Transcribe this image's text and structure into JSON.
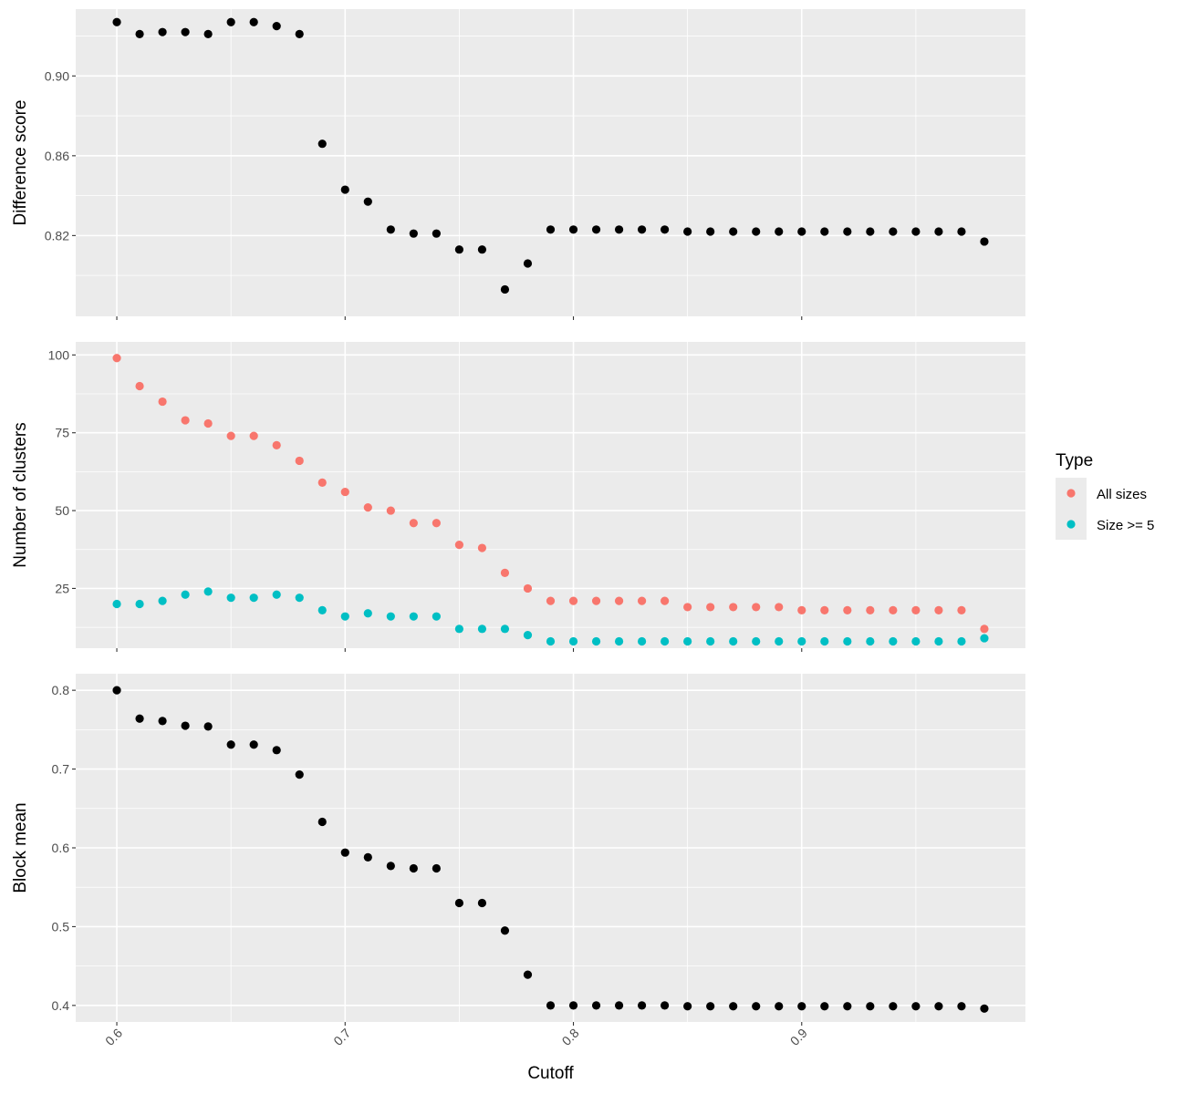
{
  "chart_data": {
    "type": "scatter",
    "xlabel": "Cutoff",
    "x_ticks": [
      0.6,
      0.7,
      0.8,
      0.9
    ],
    "x_tick_labels": [
      "0.6",
      "0.7",
      "0.8",
      "0.9"
    ],
    "xlim": [
      0.582,
      0.998
    ],
    "x": [
      0.6,
      0.61,
      0.62,
      0.63,
      0.64,
      0.65,
      0.66,
      0.67,
      0.68,
      0.69,
      0.7,
      0.71,
      0.72,
      0.73,
      0.74,
      0.75,
      0.76,
      0.77,
      0.78,
      0.79,
      0.8,
      0.81,
      0.82,
      0.83,
      0.84,
      0.85,
      0.86,
      0.87,
      0.88,
      0.89,
      0.9,
      0.91,
      0.92,
      0.93,
      0.94,
      0.95,
      0.96,
      0.97,
      0.98
    ],
    "grid": true,
    "legend": {
      "title": "Type",
      "position": "right",
      "entries": [
        {
          "label": "All sizes",
          "color": "#F8766D"
        },
        {
          "label": "Size >= 5",
          "color": "#00BFC4"
        }
      ]
    },
    "panels": [
      {
        "ylabel": "Difference score",
        "ylim": [
          0.7795,
          0.9335
        ],
        "y_ticks": [
          0.82,
          0.86,
          0.9
        ],
        "y_tick_labels": [
          "0.82",
          "0.86",
          "0.90"
        ],
        "series": [
          {
            "color": "#000000",
            "values": [
              0.927,
              0.921,
              0.922,
              0.922,
              0.921,
              0.927,
              0.927,
              0.925,
              0.921,
              0.866,
              0.843,
              0.837,
              0.823,
              0.821,
              0.821,
              0.813,
              0.813,
              0.793,
              0.806,
              0.823,
              0.823,
              0.823,
              0.823,
              0.823,
              0.823,
              0.822,
              0.822,
              0.822,
              0.822,
              0.822,
              0.822,
              0.822,
              0.822,
              0.822,
              0.822,
              0.822,
              0.822,
              0.822,
              0.817
            ]
          }
        ]
      },
      {
        "ylabel": "Number of clusters",
        "ylim": [
          5.8,
          104.2
        ],
        "y_ticks": [
          25,
          50,
          75,
          100
        ],
        "y_tick_labels": [
          "25",
          "50",
          "75",
          "100"
        ],
        "series": [
          {
            "name": "All sizes",
            "color": "#F8766D",
            "values": [
              99,
              90,
              85,
              79,
              78,
              74,
              74,
              71,
              66,
              59,
              56,
              51,
              50,
              46,
              46,
              39,
              38,
              30,
              25,
              21,
              21,
              21,
              21,
              21,
              21,
              19,
              19,
              19,
              19,
              19,
              18,
              18,
              18,
              18,
              18,
              18,
              18,
              18,
              12
            ]
          },
          {
            "name": "Size >= 5",
            "color": "#00BFC4",
            "values": [
              20,
              20,
              21,
              23,
              24,
              22,
              22,
              23,
              22,
              18,
              16,
              17,
              16,
              16,
              16,
              12,
              12,
              12,
              10,
              8,
              8,
              8,
              8,
              8,
              8,
              8,
              8,
              8,
              8,
              8,
              8,
              8,
              8,
              8,
              8,
              8,
              8,
              8,
              9
            ]
          }
        ]
      },
      {
        "ylabel": "Block mean",
        "ylim": [
          0.379,
          0.821
        ],
        "y_ticks": [
          0.4,
          0.5,
          0.6,
          0.7,
          0.8
        ],
        "y_tick_labels": [
          "0.4",
          "0.5",
          "0.6",
          "0.7",
          "0.8"
        ],
        "series": [
          {
            "color": "#000000",
            "values": [
              0.8,
              0.764,
              0.761,
              0.755,
              0.754,
              0.731,
              0.731,
              0.724,
              0.693,
              0.633,
              0.594,
              0.588,
              0.577,
              0.574,
              0.574,
              0.53,
              0.53,
              0.495,
              0.439,
              0.4,
              0.4,
              0.4,
              0.4,
              0.4,
              0.4,
              0.399,
              0.399,
              0.399,
              0.399,
              0.399,
              0.399,
              0.399,
              0.399,
              0.399,
              0.399,
              0.399,
              0.399,
              0.399,
              0.396
            ]
          }
        ]
      }
    ]
  }
}
